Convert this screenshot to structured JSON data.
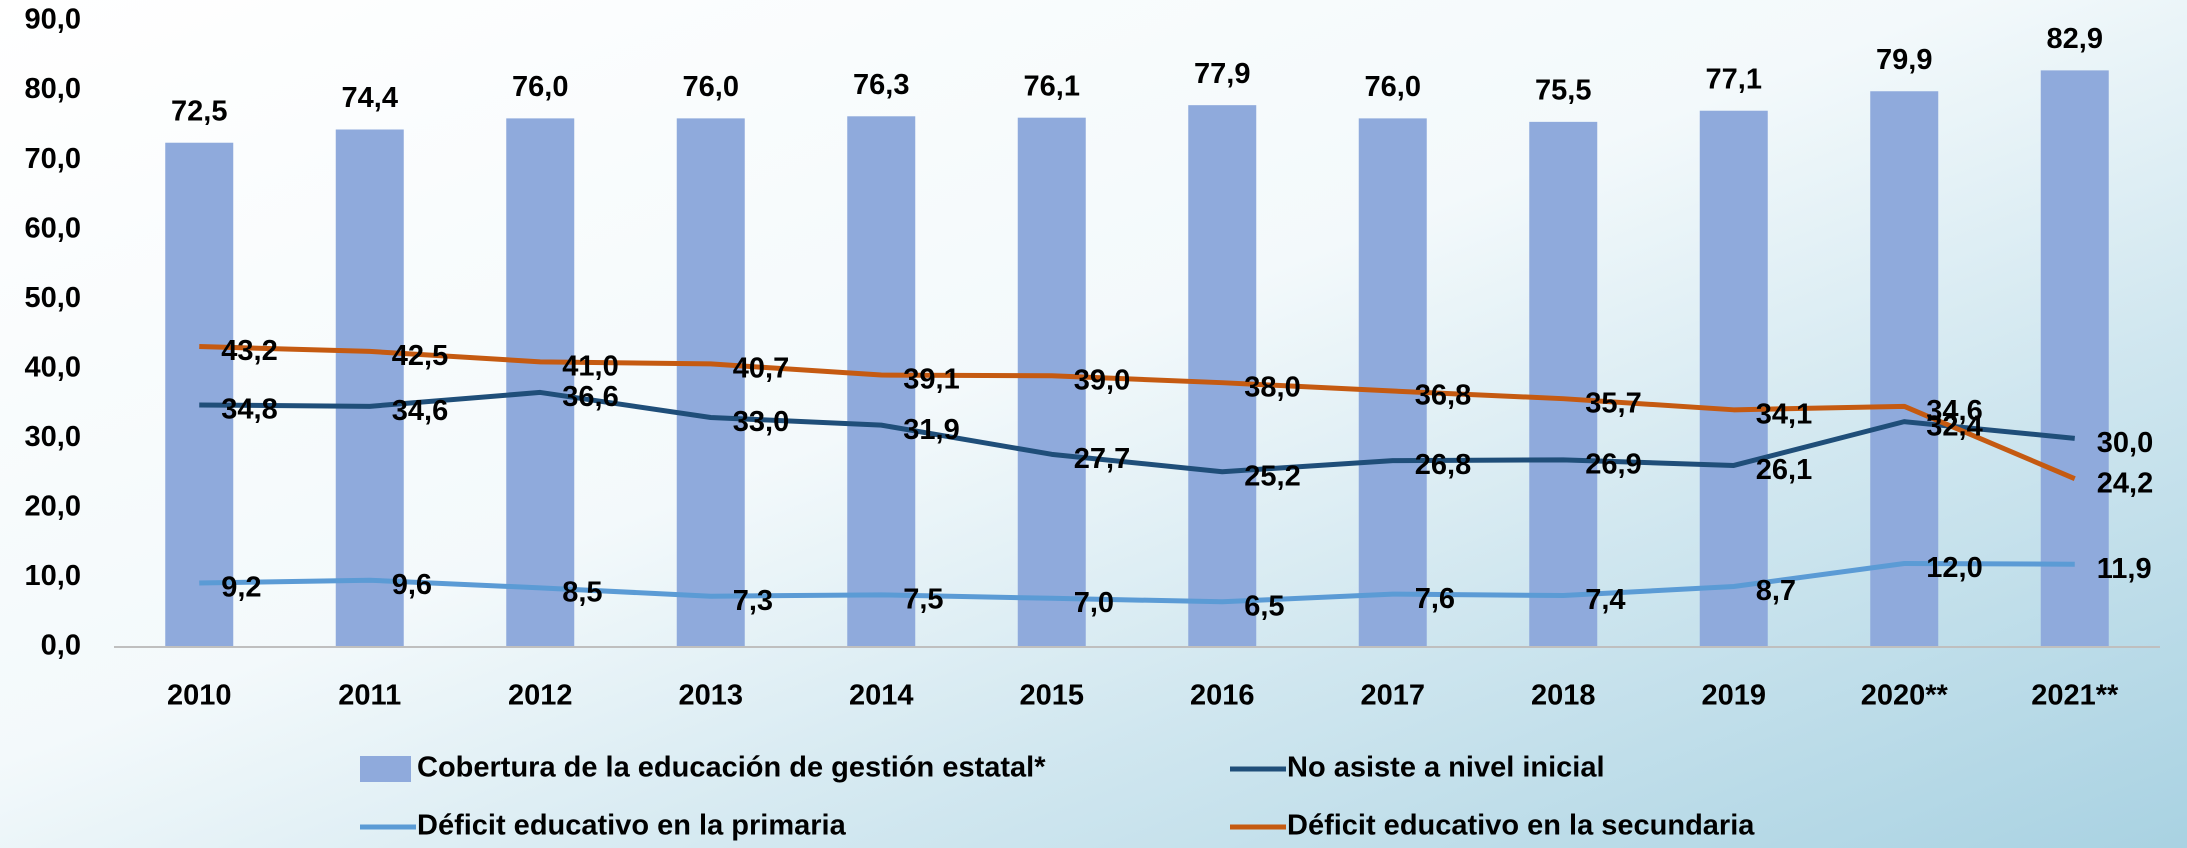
{
  "chart_data": {
    "type": "bar",
    "categories": [
      "2010",
      "2011",
      "2012",
      "2013",
      "2014",
      "2015",
      "2016",
      "2017",
      "2018",
      "2019",
      "2020**",
      "2021**"
    ],
    "series": [
      {
        "name": "Cobertura de la educación de gestión estatal*",
        "type": "bar",
        "color": "#8faadc",
        "values": [
          72.5,
          74.4,
          76.0,
          76.0,
          76.3,
          76.1,
          77.9,
          76.0,
          75.5,
          77.1,
          79.9,
          82.9
        ],
        "value_labels": [
          "72,5",
          "74,4",
          "76,0",
          "76,0",
          "76,3",
          "76,1",
          "77,9",
          "76,0",
          "75,5",
          "77,1",
          "79,9",
          "82,9"
        ]
      },
      {
        "name": "No asiste a nivel inicial",
        "type": "line",
        "color": "#1f4e79",
        "values": [
          34.8,
          34.6,
          36.6,
          33.0,
          31.9,
          27.7,
          25.2,
          26.8,
          26.9,
          26.1,
          32.4,
          30.0
        ],
        "value_labels": [
          "34,8",
          "34,6",
          "36,6",
          "33,0",
          "31,9",
          "27,7",
          "25,2",
          "26,8",
          "26,9",
          "26,1",
          "32,4",
          "30,0"
        ]
      },
      {
        "name": "Déficit educativo en la primaria",
        "type": "line",
        "color": "#5b9bd5",
        "values": [
          9.2,
          9.6,
          8.5,
          7.3,
          7.5,
          7.0,
          6.5,
          7.6,
          7.4,
          8.7,
          12.0,
          11.9
        ],
        "value_labels": [
          "9,2",
          "9,6",
          "8,5",
          "7,3",
          "7,5",
          "7,0",
          "6,5",
          "7,6",
          "7,4",
          "8,7",
          "12,0",
          "11,9"
        ]
      },
      {
        "name": "Déficit educativo en la secundaria",
        "type": "line",
        "color": "#c55a11",
        "values": [
          43.2,
          42.5,
          41.0,
          40.7,
          39.1,
          39.0,
          38.0,
          36.8,
          35.7,
          34.1,
          34.6,
          24.2
        ],
        "value_labels": [
          "43,2",
          "42,5",
          "41,0",
          "40,7",
          "39,1",
          "39,0",
          "38,0",
          "36,8",
          "35,7",
          "34,1",
          "34,6",
          "24,2"
        ]
      }
    ],
    "ylim": [
      0,
      90
    ],
    "yticks": [
      {
        "value": 0,
        "label": "0,0"
      },
      {
        "value": 10,
        "label": "10,0"
      },
      {
        "value": 20,
        "label": "20,0"
      },
      {
        "value": 30,
        "label": "30,0"
      },
      {
        "value": 40,
        "label": "40,0"
      },
      {
        "value": 50,
        "label": "50,0"
      },
      {
        "value": 60,
        "label": "60,0"
      },
      {
        "value": 70,
        "label": "70,0"
      },
      {
        "value": 80,
        "label": "80,0"
      },
      {
        "value": 90,
        "label": "90,0"
      }
    ],
    "grid": false,
    "legend": "bottom"
  }
}
